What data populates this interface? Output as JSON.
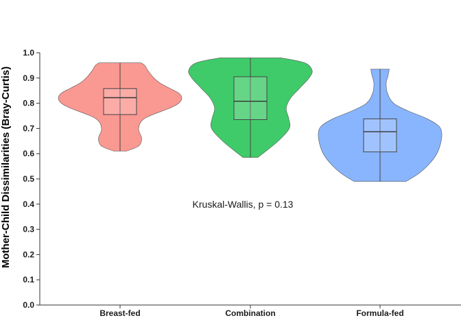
{
  "chart_data": {
    "type": "violin",
    "title": "",
    "xlabel": "",
    "ylabel": "Mother-Child Dissimilarities (Bray-Curtis)",
    "ylim": [
      0,
      1.0
    ],
    "yticks": [
      "0.0",
      "0.1",
      "0.2",
      "0.3",
      "0.4",
      "0.5",
      "0.6",
      "0.7",
      "0.8",
      "0.9",
      "1.0"
    ],
    "grid": false,
    "legend": "none",
    "annotation": "Kruskal-Wallis, p = 0.13",
    "categories": [
      "Breast-fed",
      "Combination",
      "Formula-fed"
    ],
    "groups": [
      {
        "name": "Breast-fed",
        "color": "#F8766D",
        "min": 0.61,
        "q1": 0.755,
        "median": 0.822,
        "q3": 0.858,
        "max": 0.96,
        "density": [
          [
            0.61,
            0.1
          ],
          [
            0.63,
            0.3
          ],
          [
            0.66,
            0.35
          ],
          [
            0.7,
            0.3
          ],
          [
            0.74,
            0.4
          ],
          [
            0.78,
            0.8
          ],
          [
            0.8,
            0.95
          ],
          [
            0.82,
            1.0
          ],
          [
            0.84,
            0.95
          ],
          [
            0.86,
            0.8
          ],
          [
            0.88,
            0.65
          ],
          [
            0.9,
            0.55
          ],
          [
            0.93,
            0.45
          ],
          [
            0.95,
            0.4
          ],
          [
            0.96,
            0.34
          ]
        ]
      },
      {
        "name": "Combination",
        "color": "#00BA38",
        "min": 0.585,
        "q1": 0.735,
        "median": 0.808,
        "q3": 0.905,
        "max": 0.98,
        "density": [
          [
            0.585,
            0.12
          ],
          [
            0.6,
            0.2
          ],
          [
            0.65,
            0.45
          ],
          [
            0.7,
            0.63
          ],
          [
            0.74,
            0.62
          ],
          [
            0.78,
            0.58
          ],
          [
            0.82,
            0.65
          ],
          [
            0.86,
            0.8
          ],
          [
            0.9,
            0.95
          ],
          [
            0.93,
            1.0
          ],
          [
            0.96,
            0.88
          ],
          [
            0.98,
            0.5
          ]
        ]
      },
      {
        "name": "Formula-fed",
        "color": "#619CFF",
        "min": 0.49,
        "q1": 0.607,
        "median": 0.687,
        "q3": 0.738,
        "max": 0.935,
        "density": [
          [
            0.49,
            0.42
          ],
          [
            0.52,
            0.62
          ],
          [
            0.56,
            0.8
          ],
          [
            0.6,
            0.92
          ],
          [
            0.64,
            0.98
          ],
          [
            0.68,
            1.0
          ],
          [
            0.71,
            0.95
          ],
          [
            0.74,
            0.75
          ],
          [
            0.77,
            0.45
          ],
          [
            0.8,
            0.22
          ],
          [
            0.84,
            0.12
          ],
          [
            0.88,
            0.1
          ],
          [
            0.91,
            0.13
          ],
          [
            0.935,
            0.15
          ]
        ]
      }
    ]
  }
}
